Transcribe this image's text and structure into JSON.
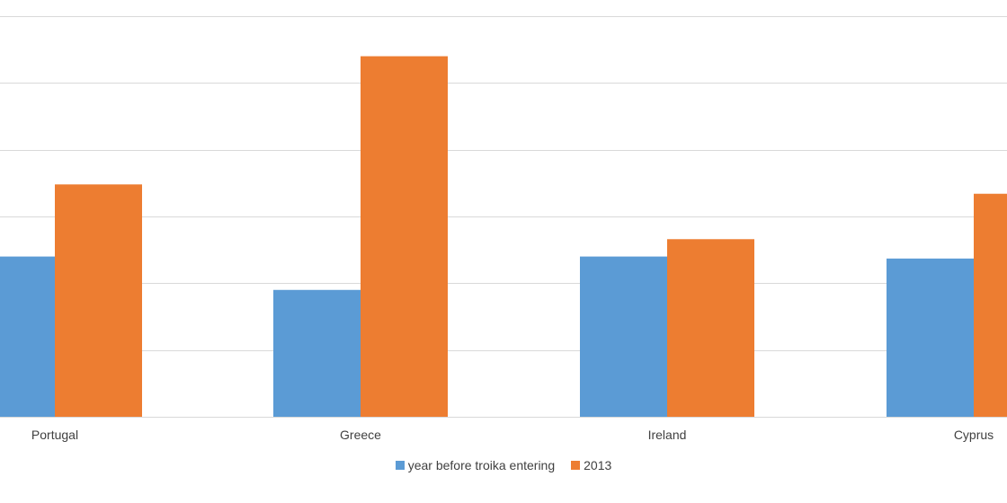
{
  "chart_data": {
    "type": "bar",
    "categories": [
      "Portugal",
      "Greece",
      "Ireland",
      "Cyprus"
    ],
    "series": [
      {
        "name": "year before troika entering",
        "values": [
          2.4,
          1.9,
          2.4,
          2.37
        ],
        "color": "#5b9bd5"
      },
      {
        "name": "2013",
        "values": [
          3.48,
          5.4,
          2.66,
          3.34
        ],
        "color": "#ed7d31"
      }
    ],
    "ylim": [
      0,
      6
    ],
    "grid": true,
    "legend_position": "bottom"
  }
}
